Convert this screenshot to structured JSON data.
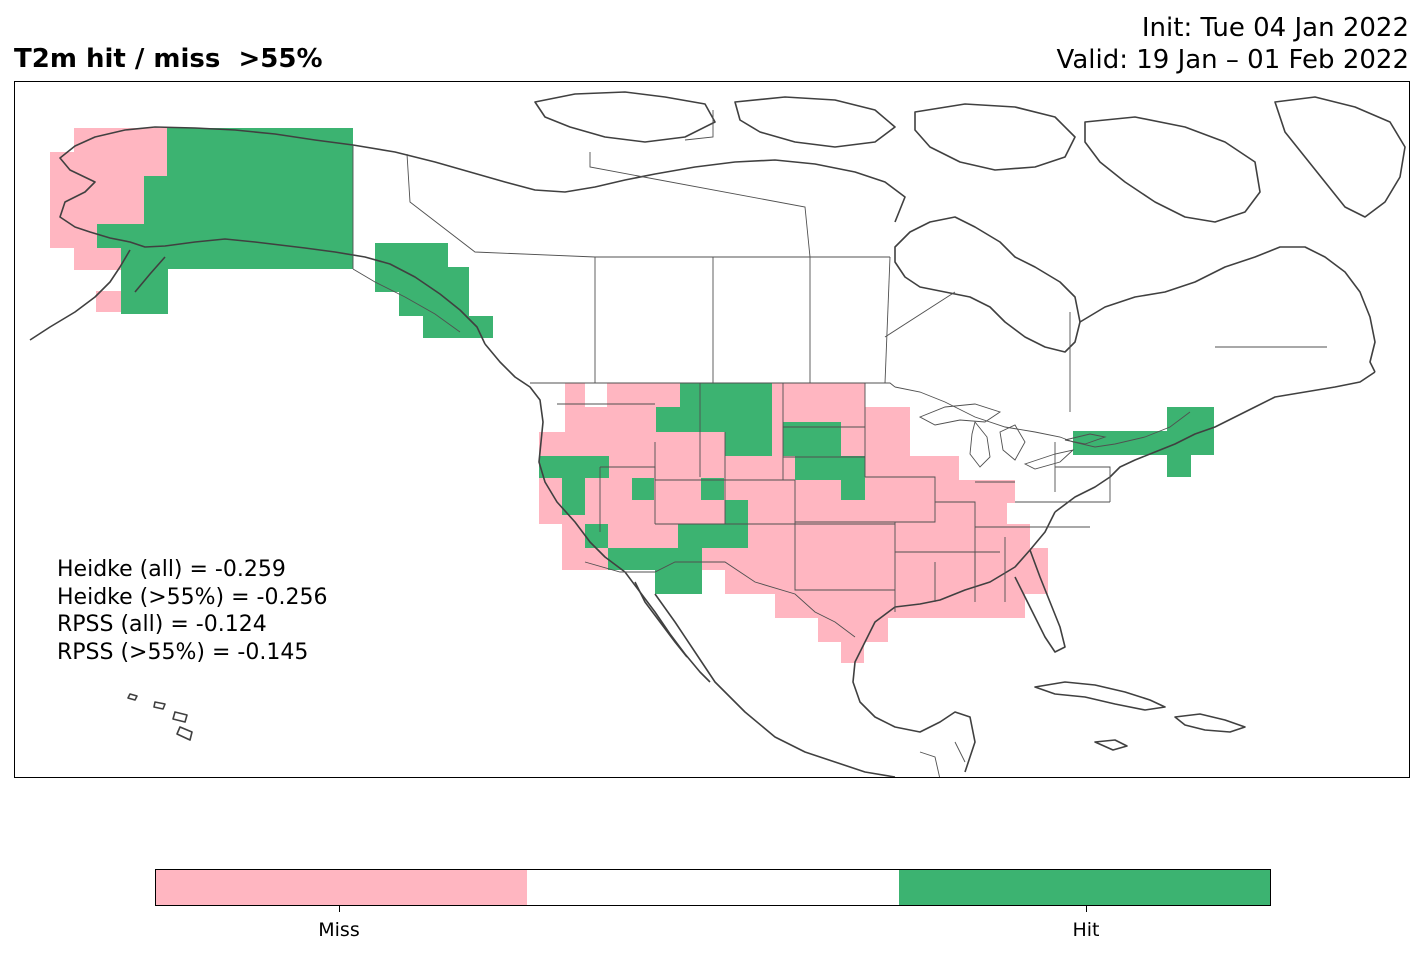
{
  "title": {
    "left": "T2m hit / miss  >55%",
    "init": "Init: Tue 04 Jan 2022",
    "valid": "Valid: 19 Jan – 01 Feb 2022"
  },
  "stats": [
    "Heidke (all) = -0.259",
    "Heidke (>55%) = -0.256",
    "RPSS (all) = -0.124",
    "RPSS (>55%) = -0.145"
  ],
  "legend": {
    "colors": {
      "miss": "#ffb6c1",
      "neutral": "#ffffff",
      "hit": "#3cb371"
    },
    "miss_label": "Miss",
    "hit_label": "Hit"
  },
  "map_data": {
    "type": "categorical grid",
    "categories": [
      "Miss",
      "Hit"
    ],
    "region": "North America"
  }
}
